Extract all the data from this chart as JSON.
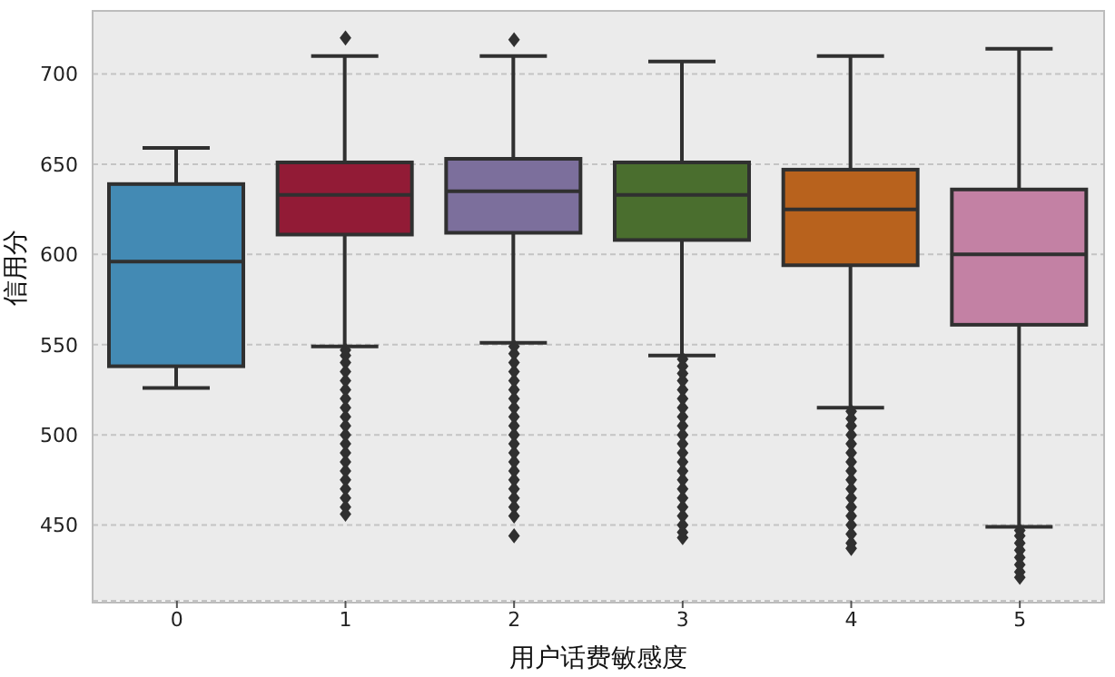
{
  "chart_data": {
    "type": "box",
    "xlabel": "用户话费敏感度",
    "ylabel": "信用分",
    "categories": [
      "0",
      "1",
      "2",
      "3",
      "4",
      "5"
    ],
    "colors": [
      "#438ab4",
      "#921b36",
      "#7c6f9c",
      "#4a6e2e",
      "#b8621d",
      "#c381a4"
    ],
    "boxes": [
      {
        "low": 526,
        "q1": 538,
        "median": 596,
        "q3": 639,
        "high": 659
      },
      {
        "low": 549,
        "q1": 611,
        "median": 633,
        "q3": 651,
        "high": 710,
        "outliers": [
          720,
          547,
          544,
          540,
          535,
          530,
          525,
          520,
          515,
          510,
          505,
          500,
          495,
          490,
          485,
          480,
          475,
          470,
          465,
          460,
          456
        ]
      },
      {
        "low": 551,
        "q1": 612,
        "median": 635,
        "q3": 653,
        "high": 710,
        "outliers": [
          719,
          549,
          545,
          540,
          535,
          530,
          525,
          520,
          515,
          510,
          505,
          500,
          495,
          490,
          485,
          480,
          475,
          470,
          465,
          460,
          455,
          444
        ]
      },
      {
        "low": 544,
        "q1": 608,
        "median": 633,
        "q3": 651,
        "high": 707,
        "outliers": [
          542,
          538,
          534,
          530,
          525,
          520,
          515,
          510,
          505,
          500,
          495,
          490,
          485,
          480,
          475,
          470,
          465,
          460,
          455,
          450,
          446,
          443
        ]
      },
      {
        "low": 515,
        "q1": 594,
        "median": 625,
        "q3": 647,
        "high": 710,
        "outliers": [
          513,
          509,
          505,
          500,
          495,
          490,
          485,
          480,
          475,
          470,
          465,
          460,
          455,
          450,
          445,
          440,
          437
        ]
      },
      {
        "low": 449,
        "q1": 561,
        "median": 600,
        "q3": 636,
        "high": 714,
        "outliers": [
          447,
          444,
          440,
          436,
          432,
          428,
          424,
          421
        ]
      }
    ],
    "ylim": [
      408,
      735
    ],
    "yticks": [
      450,
      500,
      550,
      600,
      650,
      700
    ],
    "grid": "y",
    "marker": "diamond"
  }
}
